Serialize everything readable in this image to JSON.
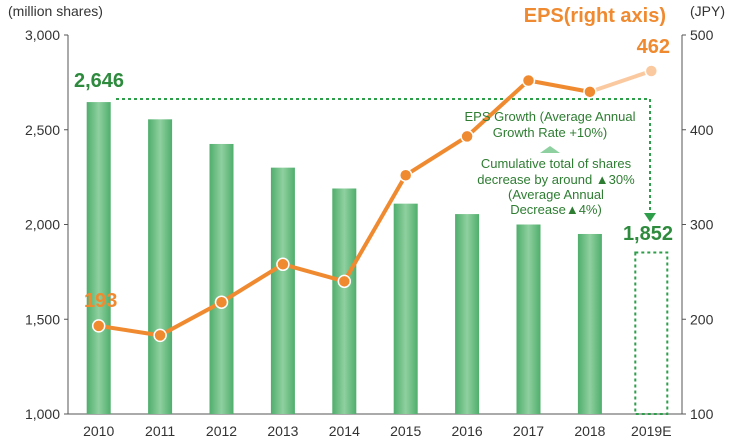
{
  "chart_data": {
    "type": "bar+line",
    "categories": [
      "2010",
      "2011",
      "2012",
      "2013",
      "2014",
      "2015",
      "2016",
      "2017",
      "2018",
      "2019E"
    ],
    "series": [
      {
        "type": "bar",
        "axis": "left",
        "values": [
          2646,
          2555,
          2425,
          2300,
          2190,
          2110,
          2055,
          2000,
          1950,
          1852
        ],
        "forecast_index": 9
      },
      {
        "name": "EPS(right axis)",
        "type": "line",
        "axis": "right",
        "values": [
          193,
          183,
          218,
          258,
          240,
          352,
          393,
          452,
          440,
          462
        ],
        "forecast_index": 9
      }
    ],
    "y_left": {
      "unit": "(million shares)",
      "range": [
        1000,
        3000
      ],
      "ticks": [
        "1,000",
        "1,500",
        "2,000",
        "2,500",
        "3,000"
      ]
    },
    "y_right": {
      "unit": "(JPY)",
      "range": [
        100,
        500
      ],
      "ticks": [
        "100",
        "200",
        "300",
        "400",
        "500"
      ]
    },
    "labels": {
      "bar_first": "2,646",
      "bar_last": "1,852",
      "eps_first": "193",
      "eps_last": "462"
    },
    "annotations": {
      "eps_growth": [
        "EPS Growth (Average Annual",
        "Growth Rate +10%)"
      ],
      "share_decrease": [
        "Cumulative total of shares",
        "decrease by around ▲30%",
        "(Average Annual",
        "Decrease▲4%)"
      ]
    },
    "colors": {
      "bar": "#5bb577",
      "bar_light": "#9fd6ad",
      "line": "#f08a30",
      "marker_light": "#fbc9a0",
      "annotation": "#2e8b3e"
    }
  }
}
